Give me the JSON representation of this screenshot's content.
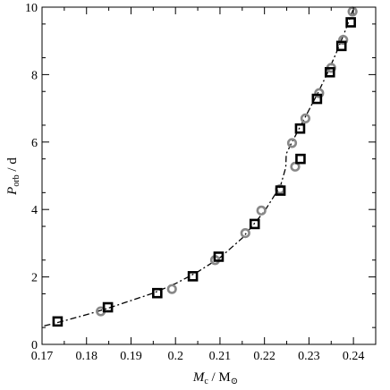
{
  "chart_data": {
    "type": "scatter",
    "title": "",
    "xlabel": {
      "main": "M",
      "sub": "c",
      "rest": " / M",
      "symbol": "⊙"
    },
    "ylabel": {
      "main": "P",
      "sub": "orb",
      "rest": " / d"
    },
    "xlim": [
      0.17,
      0.245
    ],
    "ylim": [
      0,
      10
    ],
    "xticks": [
      0.17,
      0.18,
      0.19,
      0.2,
      0.21,
      0.22,
      0.23,
      0.24
    ],
    "xtick_labels": [
      "0.17",
      "0.18",
      "0.19",
      "0.2",
      "0.21",
      "0.22",
      "0.23",
      "0.24"
    ],
    "yticks": [
      0,
      2,
      4,
      6,
      8,
      10
    ],
    "ytick_labels": [
      "0",
      "2",
      "4",
      "6",
      "8",
      "10"
    ],
    "grid": false,
    "series": [
      {
        "marker": "square",
        "color": "#000000",
        "points": [
          [
            0.1735,
            0.68
          ],
          [
            0.1848,
            1.1
          ],
          [
            0.1959,
            1.52
          ],
          [
            0.2039,
            2.02
          ],
          [
            0.2097,
            2.6
          ],
          [
            0.2178,
            3.57
          ],
          [
            0.2236,
            4.56
          ],
          [
            0.2281,
            5.5
          ],
          [
            0.228,
            6.4
          ],
          [
            0.2318,
            7.28
          ],
          [
            0.2347,
            8.07
          ],
          [
            0.2373,
            8.85
          ],
          [
            0.2394,
            9.55
          ]
        ]
      },
      {
        "marker": "circle",
        "color": "#888888",
        "points": [
          [
            0.1832,
            0.98
          ],
          [
            0.1992,
            1.64
          ],
          [
            0.2089,
            2.5
          ],
          [
            0.2157,
            3.3
          ],
          [
            0.2193,
            3.97
          ],
          [
            0.2235,
            4.6
          ],
          [
            0.2269,
            5.27
          ],
          [
            0.2262,
            5.97
          ],
          [
            0.2292,
            6.7
          ],
          [
            0.2323,
            7.45
          ],
          [
            0.235,
            8.2
          ],
          [
            0.2377,
            9.03
          ],
          [
            0.2398,
            9.87
          ]
        ]
      },
      {
        "marker": "none",
        "line": "dash-dot",
        "color": "#000000",
        "points": [
          [
            0.1705,
            0.55
          ],
          [
            0.175,
            0.7
          ],
          [
            0.18,
            0.88
          ],
          [
            0.185,
            1.08
          ],
          [
            0.19,
            1.3
          ],
          [
            0.195,
            1.52
          ],
          [
            0.2,
            1.8
          ],
          [
            0.205,
            2.15
          ],
          [
            0.21,
            2.57
          ],
          [
            0.215,
            3.15
          ],
          [
            0.22,
            3.95
          ],
          [
            0.2236,
            4.7
          ],
          [
            0.2248,
            5.25
          ],
          [
            0.2249,
            5.65
          ],
          [
            0.226,
            5.95
          ],
          [
            0.228,
            6.45
          ],
          [
            0.23,
            6.95
          ],
          [
            0.232,
            7.45
          ],
          [
            0.234,
            8.0
          ],
          [
            0.236,
            8.6
          ],
          [
            0.238,
            9.25
          ],
          [
            0.24,
            9.95
          ]
        ]
      }
    ]
  }
}
